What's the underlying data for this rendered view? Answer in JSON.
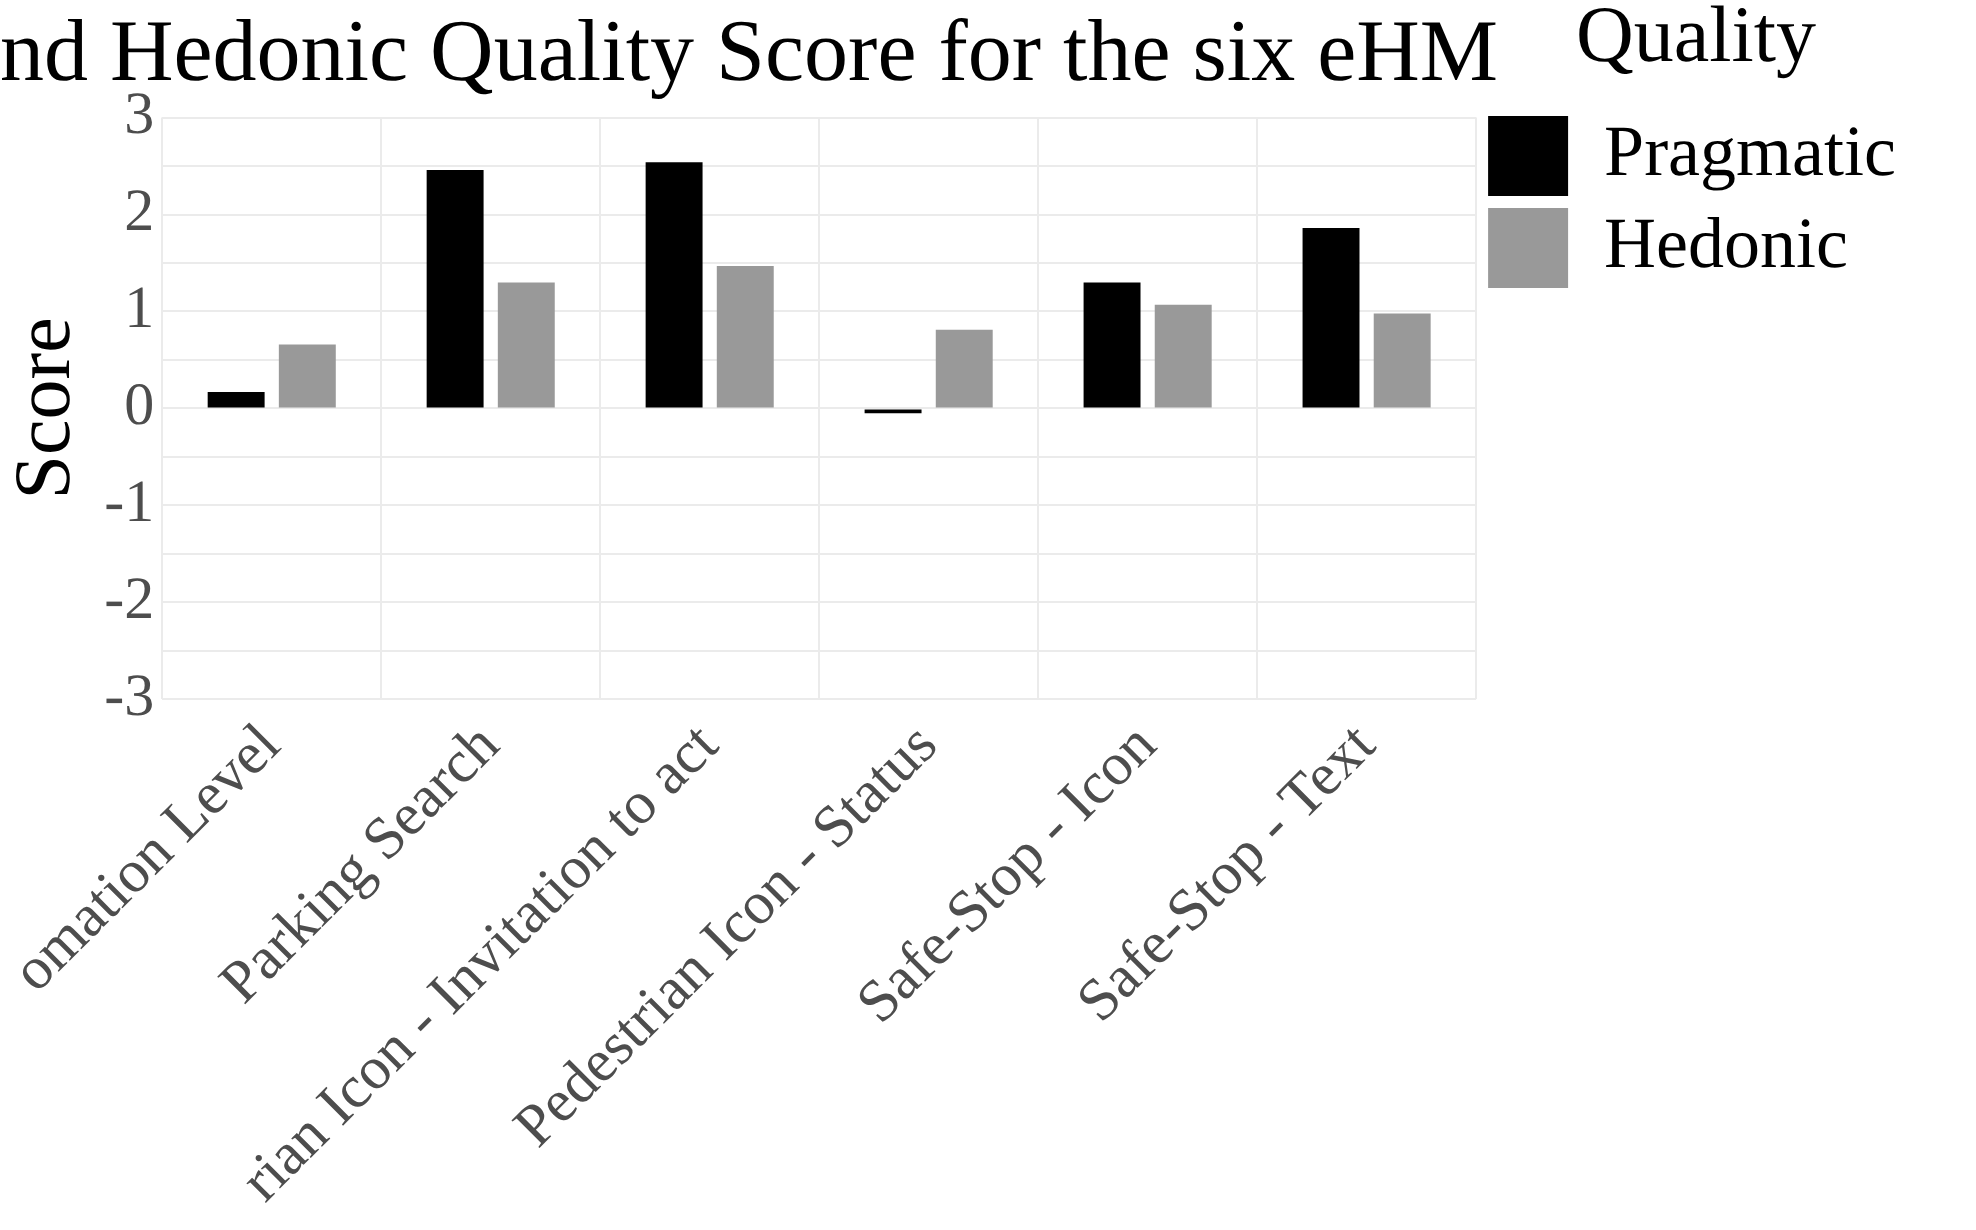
{
  "chart_data": {
    "type": "bar",
    "title": "nd Hedonic Quality Score for the six eHM",
    "ylabel": "Score",
    "legend_title": "Quality",
    "categories": [
      "omation Level",
      "Parking Search",
      "rian Icon - Invitation to act",
      "Pedestrian Icon - Status",
      "Safe-Stop - Icon",
      "Safe-Stop - Text"
    ],
    "series": [
      {
        "name": "Pragmatic",
        "color": "#000000",
        "values": [
          0.17,
          2.46,
          2.54,
          -0.05,
          1.3,
          1.86
        ]
      },
      {
        "name": "Hedonic",
        "color": "#999999",
        "values": [
          0.66,
          1.3,
          1.47,
          0.81,
          1.07,
          0.98
        ]
      }
    ],
    "ylim": [
      -3,
      3
    ],
    "yticks": [
      -3,
      {
        "value": -2.5,
        "label": null
      },
      -2,
      {
        "value": -1.5,
        "label": null
      },
      -1,
      {
        "value": -0.5,
        "label": null
      },
      0,
      {
        "value": 0.5,
        "label": null
      },
      1,
      {
        "value": 1.5,
        "label": null
      },
      2,
      {
        "value": 2.5,
        "label": null
      },
      3
    ],
    "grid": true,
    "legend": "right"
  }
}
